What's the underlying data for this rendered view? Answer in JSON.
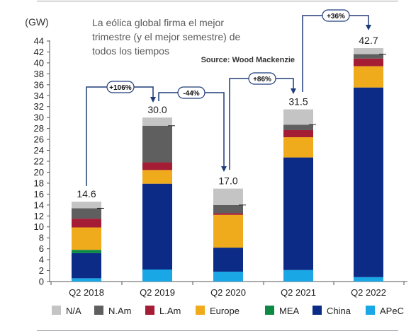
{
  "chart_data": {
    "type": "bar",
    "stacked": true,
    "title": "La eólica global firma el mejor trimestre (y el mejor semestre) de todos los tiempos",
    "title_lines": [
      "La eólica global firma el mejor",
      "trimestre (y el mejor semestre) de",
      "todos los tiempos"
    ],
    "source": "Source: Wood Mackenzie",
    "ylabel": "(GW)",
    "ylim": [
      0,
      44
    ],
    "yticks": [
      0,
      2,
      4,
      6,
      8,
      10,
      12,
      14,
      16,
      18,
      20,
      22,
      24,
      26,
      28,
      30,
      32,
      34,
      36,
      38,
      40,
      42,
      44
    ],
    "grid": false,
    "legend_position": "bottom",
    "categories": [
      "Q2 2018",
      "Q2 2019",
      "Q2 2020",
      "Q2 2021",
      "Q2 2022"
    ],
    "totals": [
      14.6,
      30.0,
      17.0,
      31.5,
      42.7
    ],
    "total_labels": [
      "14.6",
      "30.0",
      "17.0",
      "31.5",
      "42.7"
    ],
    "series": [
      {
        "name": "APeC",
        "color": "#1aa7e6",
        "values": [
          0.6,
          2.2,
          1.8,
          2.1,
          0.8
        ]
      },
      {
        "name": "China",
        "color": "#0b2b86",
        "values": [
          4.6,
          15.7,
          4.4,
          20.6,
          34.7
        ]
      },
      {
        "name": "MEA",
        "color": "#0c8a45",
        "values": [
          0.6,
          0.0,
          0.0,
          0.0,
          0.0
        ]
      },
      {
        "name": "Europe",
        "color": "#efab1c",
        "values": [
          4.1,
          2.5,
          6.0,
          3.7,
          3.9
        ]
      },
      {
        "name": "L.Am",
        "color": "#a51c35",
        "values": [
          1.6,
          1.4,
          0.3,
          1.3,
          1.4
        ]
      },
      {
        "name": "N.Am",
        "color": "#5f5f5f",
        "values": [
          1.9,
          6.7,
          1.5,
          1.0,
          0.8
        ]
      },
      {
        "name": "N/A",
        "color": "#c4c4c4",
        "values": [
          1.2,
          1.5,
          3.0,
          2.8,
          1.1
        ]
      }
    ],
    "legend_order": [
      "N/A",
      "N.Am",
      "L.Am",
      "Europe",
      "MEA",
      "China",
      "APeC"
    ],
    "annotations": [
      {
        "label": "+106%",
        "from": "Q2 2018",
        "to": "Q2 2019"
      },
      {
        "label": "-44%",
        "from": "Q2 2019",
        "to": "Q2 2020"
      },
      {
        "label": "+86%",
        "from": "Q2 2020",
        "to": "Q2 2021"
      },
      {
        "label": "+36%",
        "from": "Q2 2021",
        "to": "Q2 2022"
      }
    ]
  }
}
